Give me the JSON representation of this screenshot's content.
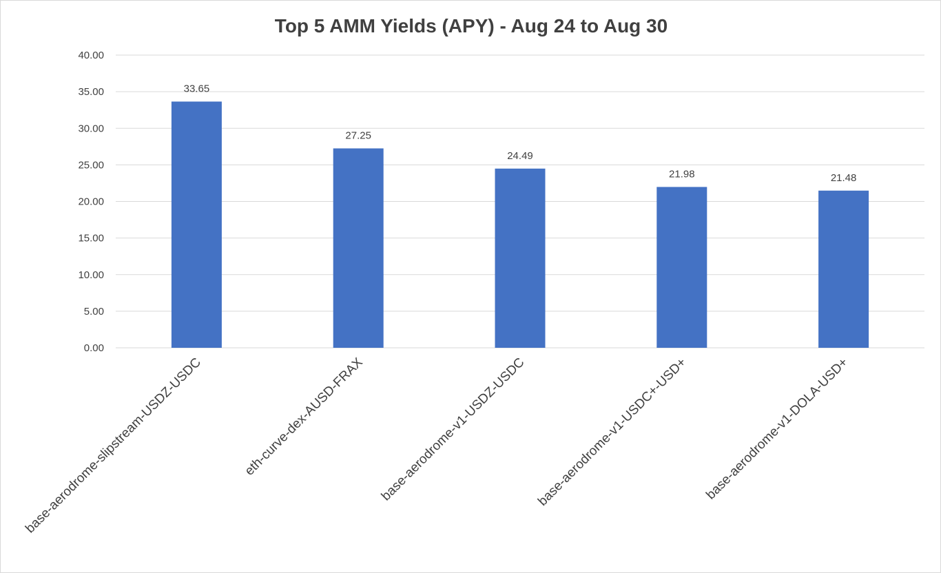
{
  "chart_data": {
    "type": "bar",
    "title": "Top 5 AMM Yields (APY) - Aug 24 to Aug 30",
    "categories": [
      "base-aerodrome-slipstream-USDZ-USDC",
      "eth-curve-dex-AUSD-FRAX",
      "base-aerodrome-v1-USDZ-USDC",
      "base-aerodrome-v1-USDC+-USD+",
      "base-aerodrome-v1-DOLA-USD+"
    ],
    "values": [
      33.65,
      27.25,
      24.49,
      21.98,
      21.48
    ],
    "data_labels": [
      "33.65",
      "27.25",
      "24.49",
      "21.98",
      "21.48"
    ],
    "ylim": [
      0,
      40
    ],
    "ytick_labels": [
      "0.00",
      "5.00",
      "10.00",
      "15.00",
      "20.00",
      "25.00",
      "30.00",
      "35.00",
      "40.00"
    ],
    "grid": true,
    "legend": "none",
    "bar_color": "#4472C4",
    "gridline_color": "#d9d9d9"
  }
}
